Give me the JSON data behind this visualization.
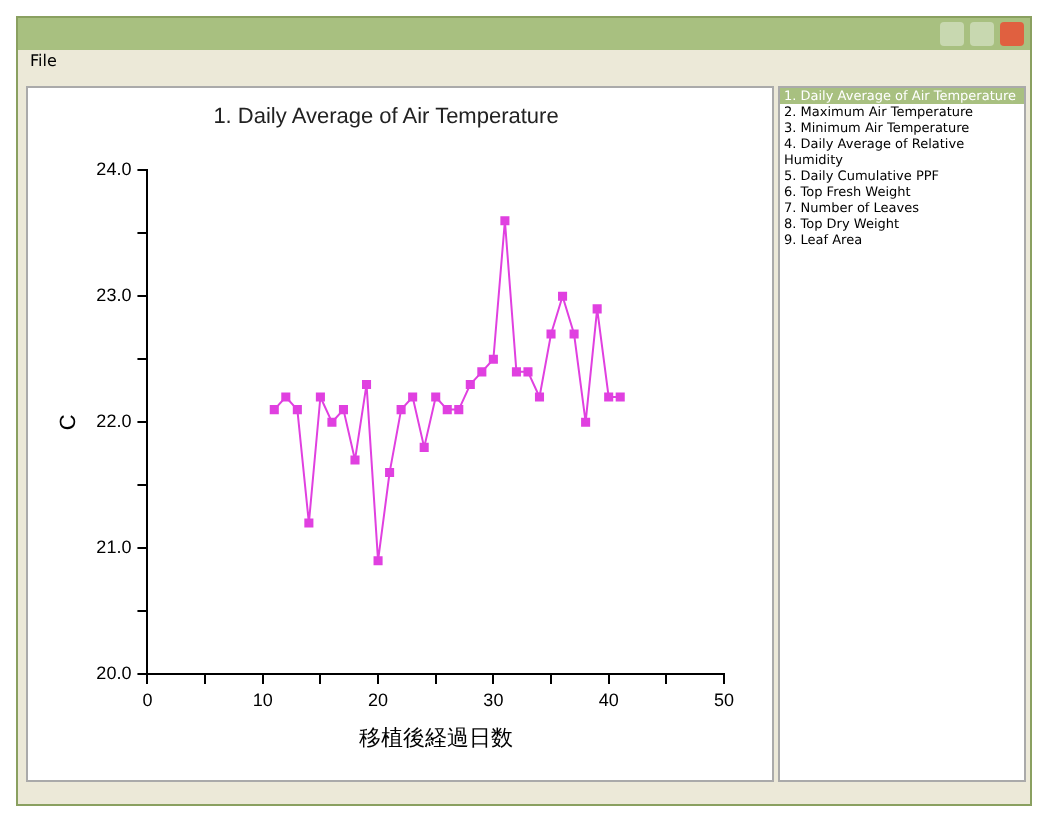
{
  "chart_data": {
    "type": "line",
    "title": "1. Daily Average of Air Temperature",
    "xlabel": "移植後経過日数",
    "ylabel": "C",
    "x": [
      11,
      12,
      13,
      14,
      15,
      16,
      17,
      18,
      19,
      20,
      21,
      22,
      23,
      24,
      25,
      26,
      27,
      28,
      29,
      30,
      31,
      32,
      33,
      34,
      35,
      36,
      37,
      38,
      39,
      40,
      41
    ],
    "series": [
      {
        "color": "#e040e0",
        "values": [
          22.1,
          22.2,
          22.1,
          21.2,
          22.2,
          22.0,
          22.1,
          21.7,
          22.3,
          20.9,
          21.6,
          22.1,
          22.2,
          21.8,
          22.2,
          22.1,
          22.1,
          22.3,
          22.4,
          22.5,
          23.6,
          22.4,
          22.4,
          22.2,
          22.7,
          23.0,
          22.7,
          22.0,
          22.9,
          22.2,
          22.2
        ]
      }
    ],
    "xlim": [
      0,
      50
    ],
    "xticks": [
      0,
      {
        "value": 5,
        "label": null
      },
      10,
      {
        "value": 15,
        "label": null
      },
      20,
      {
        "value": 25,
        "label": null
      },
      30,
      {
        "value": 35,
        "label": null
      },
      40,
      {
        "value": 45,
        "label": null
      },
      50
    ],
    "ylim": [
      20.0,
      24.0
    ],
    "yticks": [
      {
        "value": 20,
        "label": "20.0"
      },
      {
        "value": 20.5,
        "label": null
      },
      {
        "value": 21,
        "label": "21.0"
      },
      {
        "value": 21.5,
        "label": null
      },
      {
        "value": 22,
        "label": "22.0"
      },
      {
        "value": 22.5,
        "label": null
      },
      {
        "value": 23,
        "label": "23.0"
      },
      {
        "value": 23.5,
        "label": null
      },
      {
        "value": 24,
        "label": "24.0"
      }
    ],
    "grid": false,
    "legend": false,
    "marker": "square",
    "line_style": "solid",
    "annotations": [
      "File",
      "1. Daily Average of Air Temperature",
      "2. Maximum Air Temperature",
      "3. Minimum Air Temperature",
      "4. Daily Average of Relative Humidity",
      "5. Daily Cumulative PPF",
      "6. Top Fresh Weight",
      "7. Number of Leaves",
      "8. Top Dry Weight",
      "9. Leaf Area"
    ]
  }
}
